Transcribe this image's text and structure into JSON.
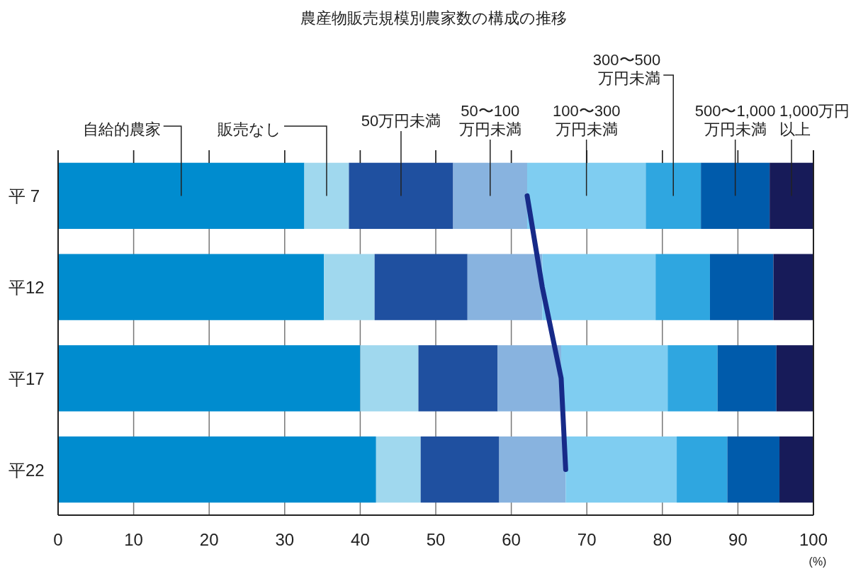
{
  "chart_data": {
    "type": "bar",
    "orientation": "horizontal",
    "stacked": true,
    "title": "農産物販売規模別農家数の構成の推移",
    "xlabel": "(%)",
    "categories": [
      "平 7",
      "平12",
      "平17",
      "平22"
    ],
    "xlim": [
      0,
      100
    ],
    "xticks": [
      0,
      10,
      20,
      30,
      40,
      50,
      60,
      70,
      80,
      90,
      100
    ],
    "grid": "x",
    "legend": false,
    "series": [
      {
        "name": "自給的農家",
        "color": "#008ccf",
        "values": [
          32.6,
          35.2,
          40.0,
          42.1
        ]
      },
      {
        "name": "販売なし",
        "color": "#a0d8ee",
        "values": [
          5.9,
          6.7,
          7.7,
          5.9
        ]
      },
      {
        "name": "50万円未満",
        "color": "#1f50a0",
        "values": [
          13.8,
          12.3,
          10.5,
          10.4
        ]
      },
      {
        "name": "50〜100万円未満",
        "color": "#88b3df",
        "values": [
          9.8,
          9.9,
          8.4,
          8.8
        ]
      },
      {
        "name": "100〜300万円未満",
        "color": "#7fcdf1",
        "values": [
          15.7,
          15.0,
          14.1,
          14.7
        ]
      },
      {
        "name": "300〜500万円未満",
        "color": "#2fa6e0",
        "values": [
          7.3,
          7.2,
          6.6,
          6.7
        ]
      },
      {
        "name": "500〜1,000万円未満",
        "color": "#005bab",
        "values": [
          9.1,
          8.4,
          7.8,
          6.9
        ]
      },
      {
        "name": "1,000万円以上",
        "color": "#171b59",
        "values": [
          5.8,
          5.3,
          4.9,
          4.5
        ]
      },
      {
        "type": "line",
        "color": "#172a88",
        "values": [
          62.1,
          64.1,
          66.6,
          67.2
        ]
      }
    ]
  }
}
